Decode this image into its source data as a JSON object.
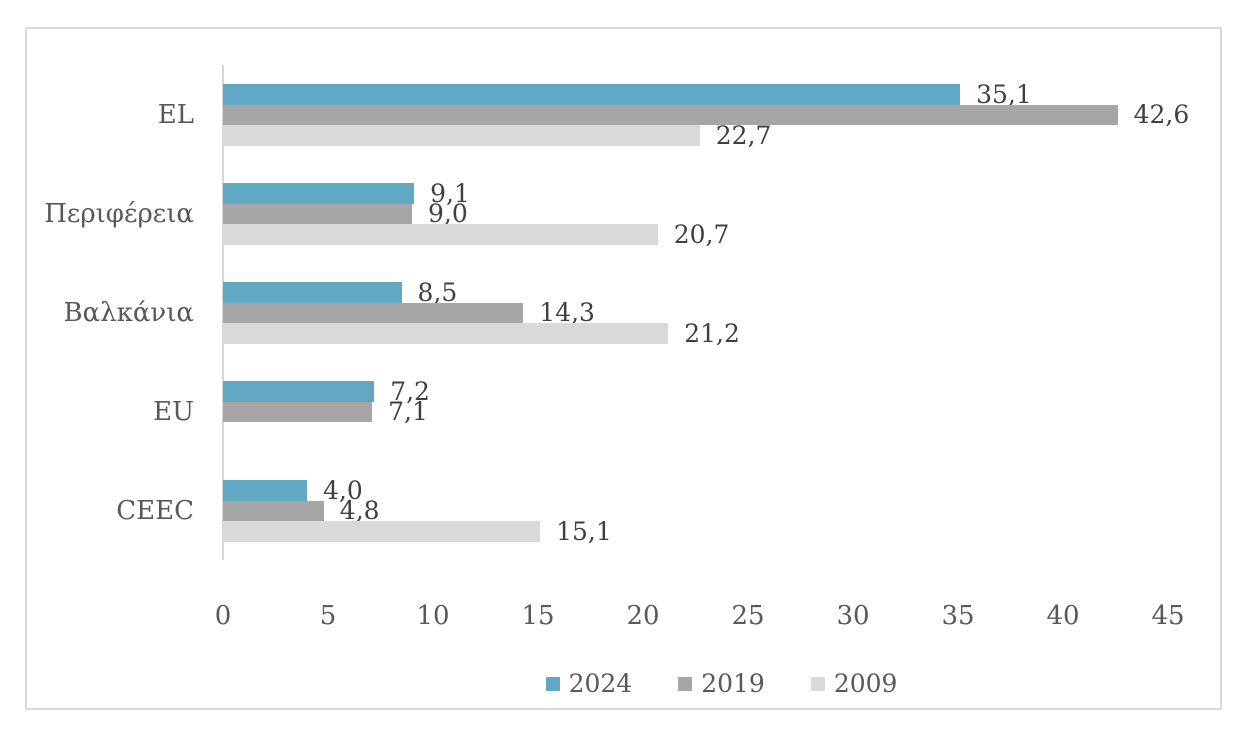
{
  "colors": {
    "series_2024": "#60A8C4",
    "series_2019": "#A6A6A6",
    "series_2009": "#D9D9D9",
    "axis_line": "#D6D6D6",
    "chart_border": "#D9D9D9",
    "axis_text": "#595959",
    "label_text": "#404040"
  },
  "chart_data": {
    "type": "bar",
    "orientation": "horizontal",
    "title": "",
    "xlabel": "",
    "ylabel": "",
    "grid": false,
    "xlim": [
      0,
      45
    ],
    "x_ticks": [
      "0",
      "5",
      "10",
      "15",
      "20",
      "25",
      "30",
      "35",
      "40",
      "45"
    ],
    "categories": [
      "EL",
      "Περιφέρεια",
      "Βαλκάνια",
      "EU",
      "CEEC"
    ],
    "series": [
      {
        "name": "2024",
        "color": "#60A8C4",
        "values": [
          35.1,
          9.1,
          8.5,
          7.2,
          4.0
        ],
        "labels": [
          "35,1",
          "9,1",
          "8,5",
          "7,2",
          "4,0"
        ]
      },
      {
        "name": "2019",
        "color": "#A6A6A6",
        "values": [
          42.6,
          9.0,
          14.3,
          7.1,
          4.8
        ],
        "labels": [
          "42,6",
          "9,0",
          "14,3",
          "7,1",
          "4,8"
        ]
      },
      {
        "name": "2009",
        "color": "#D9D9D9",
        "values": [
          22.7,
          20.7,
          21.2,
          null,
          15.1
        ],
        "labels": [
          "22,7",
          "20,7",
          "21,2",
          "",
          "15,1"
        ]
      }
    ],
    "legend": [
      "2024",
      "2019",
      "2009"
    ],
    "legend_position": "bottom"
  }
}
